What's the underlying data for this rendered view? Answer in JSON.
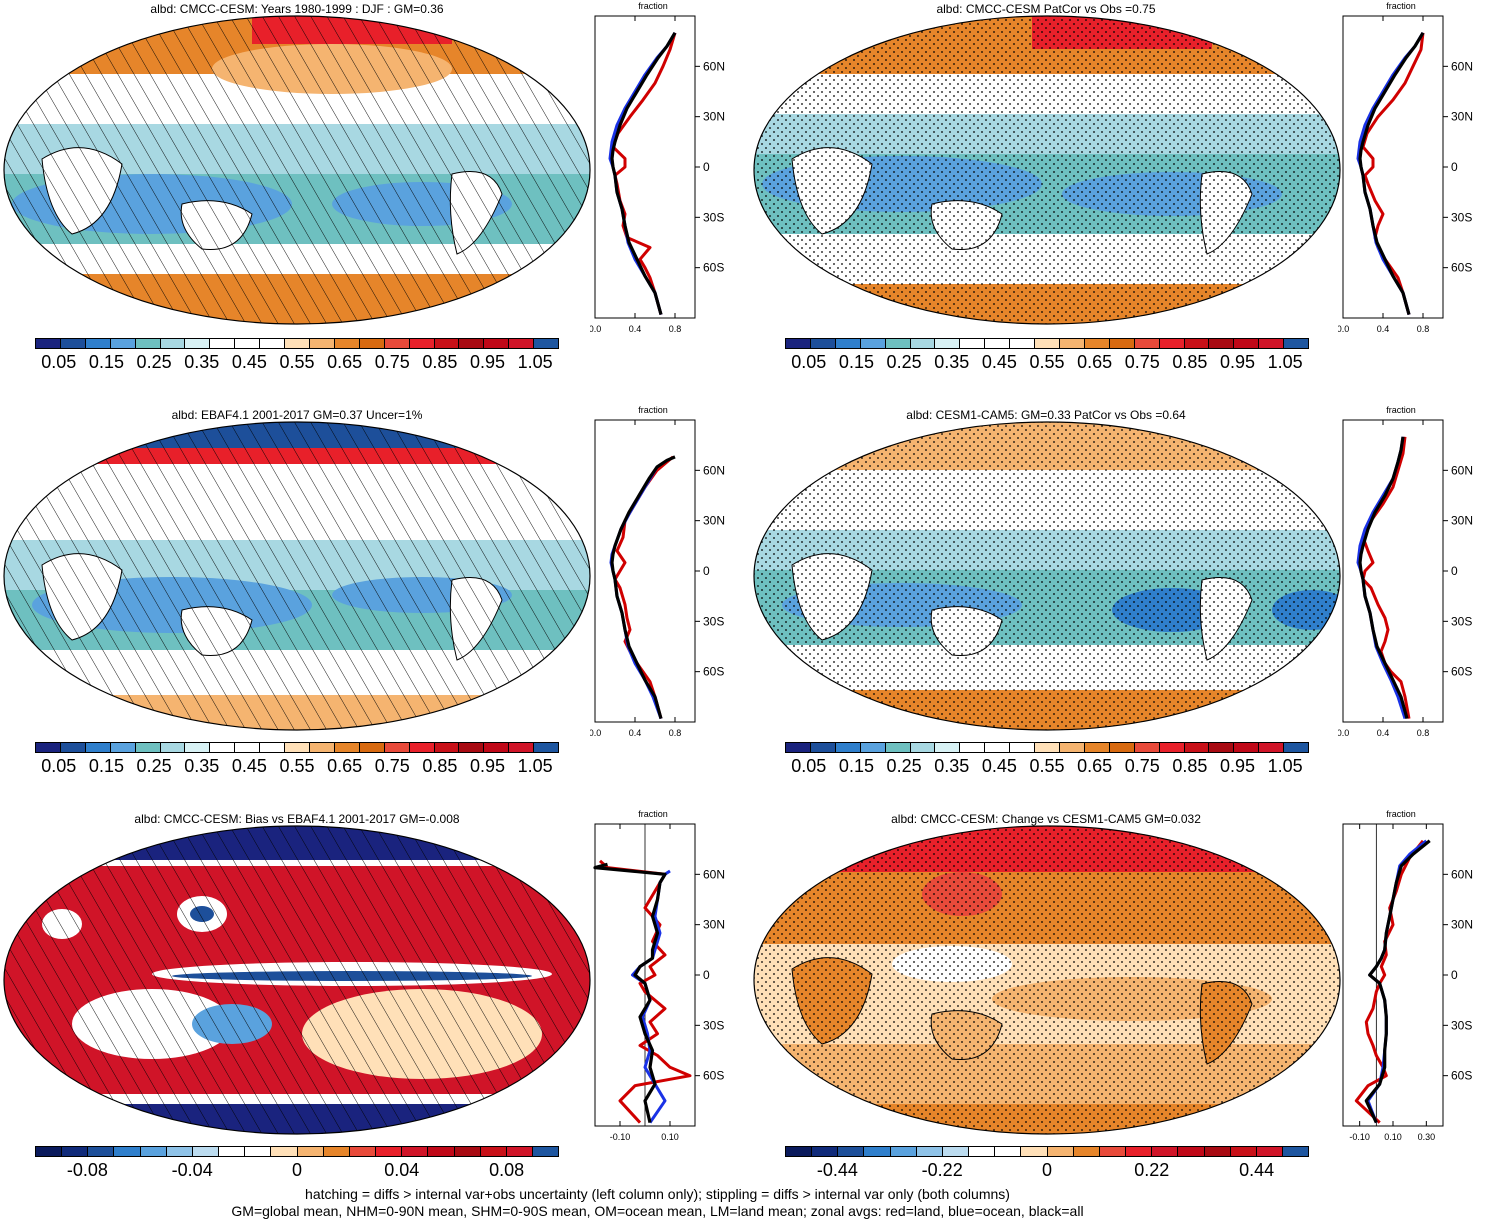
{
  "colors": {
    "blues_reds": [
      "#1a237e",
      "#1d4f9a",
      "#2f7fcc",
      "#5aa2de",
      "#6ec0c0",
      "#a8d8e2",
      "#d8f2f5",
      "#ffffff",
      "#ffffff",
      "#ffffff",
      "#ffe0b8",
      "#f5b470",
      "#e6852a",
      "#d86a10",
      "#e84a3a",
      "#e8202a",
      "#c81018",
      "#a80a12",
      "#c00818",
      "#d01428",
      "#1e56a0"
    ],
    "land": "#d00000",
    "ocean": "#1a32e6",
    "all": "#000000"
  },
  "panels": [
    {
      "id": "p1",
      "title": "albd: CMCC-CESM: Years 1980-1999 : DJF : GM=0.36",
      "overlay": "hatch",
      "palette": "abs"
    },
    {
      "id": "p2",
      "title": "albd: CMCC-CESM PatCor vs Obs =0.75",
      "overlay": "stipple",
      "palette": "abs"
    },
    {
      "id": "p3",
      "title": "albd: EBAF4.1 2001-2017 GM=0.37 Uncer=1%",
      "overlay": "hatch",
      "palette": "abs"
    },
    {
      "id": "p4",
      "title": "albd: CESM1-CAM5: GM=0.33 PatCor vs Obs =0.64",
      "overlay": "stipple",
      "palette": "abs"
    },
    {
      "id": "p5",
      "title": "albd: CMCC-CESM: Bias vs EBAF4.1 2001-2017 GM=-0.008",
      "overlay": "hatch",
      "palette": "bias"
    },
    {
      "id": "p6",
      "title": "albd: CMCC-CESM: Change vs CESM1-CAM5 GM=0.032",
      "overlay": "stipple",
      "palette": "change"
    }
  ],
  "colorbars": {
    "abs": {
      "labels": [
        "0.05",
        "0.15",
        "0.25",
        "0.35",
        "0.45",
        "0.55",
        "0.65",
        "0.75",
        "0.85",
        "0.95",
        "1.05"
      ]
    },
    "bias": {
      "labels": [
        "-0.08",
        "-0.04",
        "0",
        "0.04",
        "0.08"
      ]
    },
    "change": {
      "labels": [
        "-0.44",
        "-0.22",
        "0",
        "0.22",
        "0.44"
      ]
    }
  },
  "zonal": {
    "ylabel": "fraction",
    "lat_ticks": [
      "60N",
      "30N",
      "0",
      "30S",
      "60S"
    ],
    "abs_xticks": [
      "0.0",
      "0.4",
      "0.8"
    ],
    "bias_xticks": [
      "-0.10",
      "0.10"
    ],
    "change_xticks": [
      "-0.10",
      "0.10",
      "0.30"
    ]
  },
  "chart_data": [
    {
      "type": "line",
      "title": "albd: CMCC-CESM: Years 1980-1999 : DJF : GM=0.36",
      "xlabel": "fraction",
      "xlim": [
        0,
        1.0
      ],
      "ylim": [
        -90,
        90
      ],
      "series": [
        {
          "name": "land",
          "x": [
            0.66,
            0.6,
            0.55,
            0.5,
            0.45,
            0.55,
            0.32,
            0.28,
            0.3,
            0.25,
            0.22,
            0.2,
            0.3,
            0.3,
            0.18,
            0.23,
            0.35,
            0.48,
            0.6,
            0.68,
            0.75,
            0.8
          ],
          "y": [
            -88,
            -75,
            -66,
            -60,
            -55,
            -48,
            -42,
            -35,
            -28,
            -20,
            -10,
            -5,
            0,
            5,
            12,
            20,
            30,
            40,
            50,
            60,
            70,
            80
          ]
        },
        {
          "name": "ocean",
          "x": [
            0.66,
            0.6,
            0.5,
            0.4,
            0.33,
            0.3,
            0.27,
            0.22,
            0.2,
            0.18,
            0.15,
            0.16,
            0.17,
            0.22,
            0.3,
            0.4,
            0.5,
            0.62,
            0.72,
            0.8
          ],
          "y": [
            -88,
            -75,
            -65,
            -55,
            -45,
            -35,
            -25,
            -15,
            -5,
            0,
            5,
            10,
            15,
            25,
            35,
            45,
            55,
            65,
            72,
            80
          ]
        },
        {
          "name": "all",
          "x": [
            0.66,
            0.6,
            0.5,
            0.42,
            0.34,
            0.3,
            0.27,
            0.22,
            0.2,
            0.18,
            0.17,
            0.18,
            0.2,
            0.25,
            0.32,
            0.42,
            0.52,
            0.63,
            0.72,
            0.8
          ],
          "y": [
            -88,
            -75,
            -65,
            -55,
            -45,
            -35,
            -25,
            -15,
            -5,
            0,
            5,
            10,
            15,
            25,
            35,
            45,
            55,
            65,
            72,
            80
          ]
        }
      ]
    },
    {
      "type": "line",
      "title": "albd: CMCC-CESM PatCor vs Obs =0.75",
      "xlabel": "fraction",
      "xlim": [
        0,
        1.0
      ],
      "ylim": [
        -90,
        90
      ],
      "series": [
        {
          "name": "land",
          "x": [
            0.66,
            0.6,
            0.55,
            0.48,
            0.42,
            0.35,
            0.32,
            0.35,
            0.4,
            0.32,
            0.25,
            0.22,
            0.3,
            0.3,
            0.2,
            0.24,
            0.35,
            0.5,
            0.62,
            0.7,
            0.78,
            0.8
          ],
          "y": [
            -88,
            -75,
            -66,
            -60,
            -55,
            -48,
            -42,
            -35,
            -28,
            -20,
            -10,
            -5,
            0,
            5,
            12,
            20,
            30,
            40,
            50,
            60,
            70,
            80
          ]
        },
        {
          "name": "ocean",
          "x": [
            0.66,
            0.6,
            0.5,
            0.4,
            0.33,
            0.3,
            0.27,
            0.22,
            0.2,
            0.18,
            0.15,
            0.16,
            0.17,
            0.22,
            0.3,
            0.4,
            0.5,
            0.62,
            0.72,
            0.8
          ],
          "y": [
            -88,
            -75,
            -65,
            -55,
            -45,
            -35,
            -25,
            -15,
            -5,
            0,
            5,
            10,
            15,
            25,
            35,
            45,
            55,
            65,
            72,
            80
          ]
        },
        {
          "name": "all",
          "x": [
            0.66,
            0.6,
            0.5,
            0.42,
            0.34,
            0.3,
            0.27,
            0.22,
            0.2,
            0.18,
            0.17,
            0.18,
            0.2,
            0.25,
            0.32,
            0.42,
            0.52,
            0.63,
            0.72,
            0.8
          ],
          "y": [
            -88,
            -75,
            -65,
            -55,
            -45,
            -35,
            -25,
            -15,
            -5,
            0,
            5,
            10,
            15,
            25,
            35,
            45,
            55,
            65,
            72,
            80
          ]
        }
      ]
    },
    {
      "type": "line",
      "title": "albd: EBAF4.1 2001-2017 GM=0.37 Uncer=1%",
      "xlabel": "fraction",
      "xlim": [
        0,
        1.0
      ],
      "ylim": [
        -90,
        90
      ],
      "series": [
        {
          "name": "land",
          "x": [
            0.66,
            0.6,
            0.55,
            0.48,
            0.42,
            0.35,
            0.3,
            0.35,
            0.32,
            0.3,
            0.25,
            0.2,
            0.25,
            0.3,
            0.22,
            0.28,
            0.3,
            0.4,
            0.5,
            0.62,
            0.7,
            0.78
          ],
          "y": [
            -88,
            -75,
            -66,
            -60,
            -55,
            -48,
            -42,
            -35,
            -28,
            -20,
            -10,
            -5,
            0,
            5,
            12,
            20,
            30,
            40,
            50,
            60,
            64,
            68
          ]
        },
        {
          "name": "ocean",
          "x": [
            0.66,
            0.58,
            0.5,
            0.4,
            0.33,
            0.3,
            0.27,
            0.22,
            0.2,
            0.18,
            0.16,
            0.17,
            0.2,
            0.26,
            0.35,
            0.45,
            0.55,
            0.62
          ],
          "y": [
            -88,
            -75,
            -65,
            -55,
            -45,
            -35,
            -25,
            -15,
            -5,
            0,
            5,
            10,
            15,
            25,
            35,
            45,
            55,
            62
          ]
        },
        {
          "name": "all",
          "x": [
            0.66,
            0.6,
            0.5,
            0.42,
            0.34,
            0.3,
            0.27,
            0.22,
            0.2,
            0.18,
            0.17,
            0.18,
            0.2,
            0.26,
            0.34,
            0.44,
            0.54,
            0.62,
            0.72,
            0.8
          ],
          "y": [
            -88,
            -75,
            -65,
            -55,
            -45,
            -35,
            -25,
            -15,
            -5,
            0,
            5,
            10,
            15,
            25,
            35,
            45,
            55,
            62,
            66,
            68
          ]
        }
      ]
    },
    {
      "type": "line",
      "title": "albd: CESM1-CAM5: GM=0.33 PatCor vs Obs =0.64",
      "xlabel": "fraction",
      "xlim": [
        0,
        1.0
      ],
      "ylim": [
        -90,
        90
      ],
      "series": [
        {
          "name": "land",
          "x": [
            0.66,
            0.62,
            0.58,
            0.48,
            0.42,
            0.38,
            0.42,
            0.45,
            0.42,
            0.35,
            0.28,
            0.2,
            0.22,
            0.3,
            0.25,
            0.2,
            0.28,
            0.4,
            0.5,
            0.55,
            0.6,
            0.62
          ],
          "y": [
            -88,
            -75,
            -66,
            -60,
            -55,
            -48,
            -42,
            -35,
            -28,
            -20,
            -10,
            -5,
            0,
            5,
            12,
            20,
            30,
            40,
            50,
            60,
            70,
            80
          ]
        },
        {
          "name": "ocean",
          "x": [
            0.62,
            0.55,
            0.48,
            0.4,
            0.33,
            0.3,
            0.27,
            0.22,
            0.2,
            0.18,
            0.15,
            0.16,
            0.17,
            0.22,
            0.3,
            0.4,
            0.5,
            0.55,
            0.58,
            0.6
          ],
          "y": [
            -88,
            -75,
            -65,
            -55,
            -45,
            -35,
            -25,
            -15,
            -5,
            0,
            5,
            10,
            15,
            25,
            35,
            45,
            55,
            65,
            72,
            80
          ]
        },
        {
          "name": "all",
          "x": [
            0.64,
            0.58,
            0.5,
            0.42,
            0.34,
            0.3,
            0.27,
            0.22,
            0.2,
            0.18,
            0.17,
            0.18,
            0.2,
            0.25,
            0.32,
            0.42,
            0.5,
            0.55,
            0.58,
            0.6
          ],
          "y": [
            -88,
            -75,
            -65,
            -55,
            -45,
            -35,
            -25,
            -15,
            -5,
            0,
            5,
            10,
            15,
            25,
            35,
            45,
            55,
            65,
            72,
            80
          ]
        }
      ]
    },
    {
      "type": "line",
      "title": "albd: CMCC-CESM: Bias vs EBAF4.1 2001-2017 GM=-0.008",
      "xlabel": "fraction",
      "xlim": [
        -0.2,
        0.2
      ],
      "ylim": [
        -90,
        90
      ],
      "series": [
        {
          "name": "land",
          "x": [
            -0.02,
            -0.1,
            -0.04,
            0.18,
            0.1,
            0.05,
            -0.02,
            0.05,
            0.02,
            0.08,
            0.0,
            -0.02,
            0.04,
            0.02,
            0.08,
            0.03,
            0.06,
            0.0,
            0.04,
            0.08,
            -0.15,
            -0.18
          ],
          "y": [
            -88,
            -75,
            -66,
            -60,
            -55,
            -48,
            -42,
            -35,
            -28,
            -20,
            -10,
            -5,
            0,
            5,
            12,
            20,
            30,
            40,
            50,
            60,
            64,
            68
          ]
        },
        {
          "name": "ocean",
          "x": [
            0.02,
            0.08,
            0.04,
            0.0,
            0.02,
            0.01,
            -0.01,
            0.02,
            0.0,
            -0.05,
            -0.02,
            0.03,
            0.04,
            0.06,
            0.04,
            0.05,
            0.06,
            0.08,
            0.1
          ],
          "y": [
            -88,
            -75,
            -65,
            -55,
            -45,
            -35,
            -25,
            -15,
            -5,
            0,
            5,
            10,
            15,
            25,
            35,
            45,
            55,
            60,
            62
          ]
        },
        {
          "name": "all",
          "x": [
            0.02,
            0.0,
            0.04,
            0.02,
            0.03,
            0.0,
            -0.02,
            0.02,
            0.0,
            -0.04,
            -0.02,
            0.03,
            0.03,
            0.05,
            0.03,
            0.05,
            0.06,
            0.08,
            -0.2,
            -0.15
          ],
          "y": [
            -88,
            -75,
            -65,
            -55,
            -45,
            -35,
            -25,
            -15,
            -5,
            0,
            5,
            10,
            15,
            25,
            35,
            45,
            55,
            60,
            64,
            66
          ]
        }
      ]
    },
    {
      "type": "line",
      "title": "albd: CMCC-CESM: Change vs CESM1-CAM5 GM=0.032",
      "xlabel": "fraction",
      "xlim": [
        -0.2,
        0.4
      ],
      "ylim": [
        -90,
        90
      ],
      "series": [
        {
          "name": "land",
          "x": [
            0.02,
            -0.12,
            -0.05,
            0.06,
            0.04,
            0.0,
            -0.02,
            -0.05,
            -0.06,
            -0.02,
            0.0,
            0.02,
            0.05,
            0.03,
            0.06,
            0.05,
            0.1,
            0.08,
            0.12,
            0.15,
            0.2,
            0.28
          ],
          "y": [
            -88,
            -75,
            -66,
            -60,
            -55,
            -48,
            -42,
            -35,
            -28,
            -20,
            -10,
            -5,
            0,
            5,
            12,
            20,
            30,
            40,
            50,
            60,
            70,
            80
          ]
        },
        {
          "name": "ocean",
          "x": [
            0.0,
            -0.05,
            0.02,
            0.04,
            0.05,
            0.06,
            0.06,
            0.05,
            0.02,
            -0.04,
            0.0,
            0.03,
            0.05,
            0.06,
            0.08,
            0.1,
            0.12,
            0.14,
            0.2,
            0.3
          ],
          "y": [
            -88,
            -75,
            -65,
            -55,
            -45,
            -35,
            -25,
            -15,
            -5,
            0,
            5,
            10,
            15,
            25,
            35,
            45,
            55,
            65,
            72,
            80
          ]
        },
        {
          "name": "all",
          "x": [
            0.0,
            -0.06,
            0.02,
            0.05,
            0.05,
            0.06,
            0.06,
            0.05,
            0.02,
            -0.04,
            0.0,
            0.03,
            0.05,
            0.06,
            0.08,
            0.1,
            0.12,
            0.15,
            0.22,
            0.32
          ],
          "y": [
            -88,
            -75,
            -65,
            -55,
            -45,
            -35,
            -25,
            -15,
            -5,
            0,
            5,
            10,
            15,
            25,
            35,
            45,
            55,
            65,
            72,
            80
          ]
        }
      ]
    }
  ],
  "footer": {
    "line1": "hatching = diffs > internal var+obs uncertainty (left column only); stippling = diffs > internal var only (both columns)",
    "line2": "GM=global mean, NHM=0-90N mean, SHM=0-90S mean, OM=ocean mean, LM=land mean; zonal avgs: red=land, blue=ocean, black=all"
  }
}
